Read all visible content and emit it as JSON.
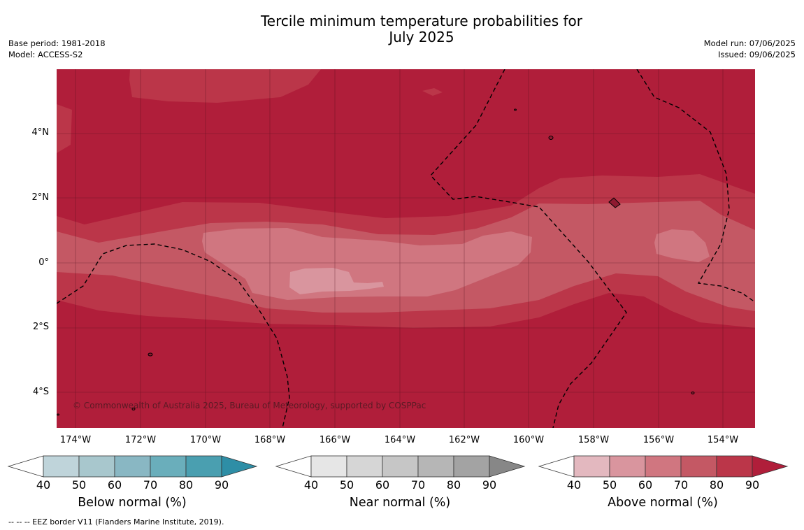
{
  "title_line1": "Tercile minimum temperature probabilities for",
  "title_line2": "July 2025",
  "base_period": "Base period: 1981-2018",
  "model": "Model: ACCESS-S2",
  "model_run": "Model run: 07/06/2025",
  "issued": "Issued: 09/06/2025",
  "lat_labels": [
    "4°N",
    "2°N",
    "0°",
    "2°S",
    "4°S"
  ],
  "lon_labels": [
    "174°W",
    "172°W",
    "170°W",
    "168°W",
    "166°W",
    "164°W",
    "162°W",
    "160°W",
    "158°W",
    "156°W",
    "154°W"
  ],
  "copyright": "© Commonwealth of Australia 2025, Bureau of Meteorology, supported by COSPPac",
  "colorbars": [
    {
      "label": "Below normal (%)",
      "ticks": [
        "40",
        "50",
        "60",
        "70",
        "80",
        "90"
      ],
      "colors": [
        "#bfd4da",
        "#a8c7cd",
        "#89b7c3",
        "#6aaebb",
        "#4a9fb0",
        "#2e8ea6"
      ]
    },
    {
      "label": "Near normal (%)",
      "ticks": [
        "40",
        "50",
        "60",
        "70",
        "80",
        "90"
      ],
      "colors": [
        "#e6e6e6",
        "#d6d6d6",
        "#c6c6c6",
        "#b6b6b6",
        "#a3a3a3",
        "#878787"
      ]
    },
    {
      "label": "Above normal (%)",
      "ticks": [
        "40",
        "50",
        "60",
        "70",
        "80",
        "90"
      ],
      "colors": [
        "#e3b8bf",
        "#d9959e",
        "#d07680",
        "#c45864",
        "#bb3649",
        "#b01e3a"
      ]
    }
  ],
  "footnote": "--  --  -- EEZ border V11 (Flanders Marine Institute, 2019)."
}
